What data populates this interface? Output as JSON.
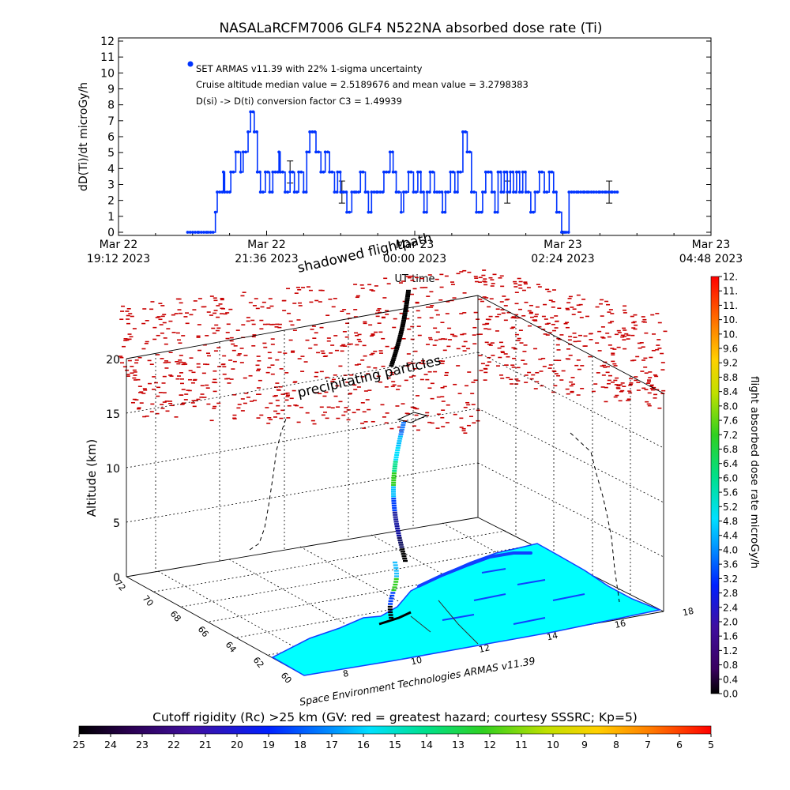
{
  "title": "NASALaRCFM7006   GLF4  N522NA absorbed dose rate (Ti)",
  "chart_data": [
    {
      "type": "line",
      "ylabel": "dD(Ti)/dt microGy/h",
      "ylim": [
        0,
        12
      ],
      "yticks": [
        0,
        1,
        2,
        3,
        4,
        5,
        6,
        7,
        8,
        9,
        10,
        11,
        12
      ],
      "xlabel": "UT time",
      "xlim_hours": [
        0,
        9.6
      ],
      "xticks": [
        {
          "l1": "Mar 22",
          "l2": "19:12 2023",
          "h": 0
        },
        {
          "l1": "Mar 22",
          "l2": "21:36 2023",
          "h": 2.4
        },
        {
          "l1": "Mar 23",
          "l2": "00:00 2023",
          "h": 4.8
        },
        {
          "l1": "Mar 23",
          "l2": "02:24 2023",
          "h": 7.2
        },
        {
          "l1": "Mar 23",
          "l2": "04:48 2023",
          "h": 9.6
        }
      ],
      "legend": [
        "SET ARMAS v11.39 with 22% 1-sigma uncertainty",
        "Cruise altitude median value = 2.5189676 and mean value = 3.2798383",
        "D(si) -> D(ti) conversion factor C3 = 1.49939"
      ],
      "series": [
        {
          "color": "#0033ff",
          "x": [
            1.12,
            1.3,
            1.45,
            1.57,
            1.6,
            1.7,
            1.72,
            1.82,
            1.9,
            1.98,
            2.02,
            2.1,
            2.14,
            2.2,
            2.25,
            2.3,
            2.38,
            2.45,
            2.5,
            2.6,
            2.62,
            2.7,
            2.78,
            2.85,
            2.92,
            3.0,
            3.05,
            3.1,
            3.2,
            3.28,
            3.35,
            3.42,
            3.5,
            3.55,
            3.6,
            3.65,
            3.7,
            3.78,
            3.85,
            3.92,
            4.0,
            4.05,
            4.1,
            4.2,
            4.3,
            4.4,
            4.45,
            4.5,
            4.58,
            4.62,
            4.7,
            4.78,
            4.85,
            4.9,
            4.95,
            5.0,
            5.05,
            5.12,
            5.2,
            5.25,
            5.3,
            5.38,
            5.45,
            5.5,
            5.58,
            5.65,
            5.72,
            5.8,
            5.9,
            5.95,
            6.05,
            6.1,
            6.15,
            6.2,
            6.25,
            6.3,
            6.35,
            6.4,
            6.45,
            6.5,
            6.55,
            6.6,
            6.68,
            6.75,
            6.82,
            6.9,
            6.98,
            7.05,
            7.1,
            7.18,
            7.25,
            7.3,
            7.38,
            7.45,
            7.55,
            7.62,
            7.7,
            7.8,
            7.9,
            8.0
          ],
          "y": [
            0,
            0,
            0,
            1.26,
            2.52,
            3.78,
            2.52,
            3.78,
            5.04,
            3.78,
            5.04,
            6.3,
            7.56,
            6.3,
            3.78,
            2.52,
            3.78,
            2.52,
            3.78,
            5.04,
            3.78,
            2.52,
            3.78,
            2.52,
            3.78,
            2.52,
            5.04,
            6.3,
            5.04,
            3.78,
            5.04,
            3.78,
            2.52,
            3.78,
            2.52,
            2.52,
            1.26,
            2.52,
            2.52,
            3.78,
            2.52,
            1.26,
            2.52,
            2.52,
            3.78,
            5.04,
            3.78,
            2.52,
            1.26,
            2.52,
            3.78,
            2.52,
            3.78,
            2.52,
            1.26,
            2.52,
            3.78,
            2.52,
            2.52,
            1.26,
            2.52,
            3.78,
            2.52,
            3.78,
            6.3,
            5.04,
            2.52,
            1.26,
            2.52,
            3.78,
            2.52,
            1.26,
            3.78,
            2.52,
            3.78,
            2.52,
            3.78,
            2.52,
            3.78,
            2.52,
            3.78,
            2.52,
            1.26,
            2.52,
            3.78,
            2.52,
            3.78,
            2.52,
            1.26,
            0,
            0,
            2.52,
            2.52,
            2.52,
            2.52,
            2.52,
            2.52,
            2.52,
            2.52,
            2.52
          ]
        }
      ],
      "errorbars_hours": [
        2.78,
        3.62,
        6.3,
        7.95
      ],
      "shadowed_label": "shadowed flightpath"
    },
    {
      "type": "scatter",
      "ylabel": "Altitude (km)",
      "zticks": [
        0,
        5,
        10,
        15,
        20
      ],
      "lat_ticks": [
        "72",
        "70",
        "68",
        "66",
        "64",
        "62",
        "60"
      ],
      "lon_ticks": [
        "8",
        "10",
        "12",
        "14",
        "16",
        "18"
      ],
      "annotation": "precipitating particles",
      "credit": "Space Environment Technologies ARMAS v11.39",
      "colorbar_label": "flight absorbed dose rate microGy/h",
      "colorbar_ticks": [
        "12.",
        "11.",
        "11.",
        "10.",
        "10.",
        "9.6",
        "9.2",
        "8.8",
        "8.4",
        "8.0",
        "7.6",
        "7.2",
        "6.8",
        "6.4",
        "6.0",
        "5.6",
        "5.2",
        "4.8",
        "4.4",
        "4.0",
        "3.6",
        "3.2",
        "2.8",
        "2.4",
        "2.0",
        "1.6",
        "1.2",
        "0.8",
        "0.4",
        "0.0"
      ],
      "rigidity_label": "Cutoff rigidity (Rc) >25 km (GV: red = greatest hazard; courtesy SSSRC; Kp=5)",
      "rigidity_ticks": [
        "25",
        "24",
        "23",
        "22",
        "21",
        "20",
        "19",
        "18",
        "17",
        "16",
        "15",
        "14",
        "13",
        "12",
        "11",
        "10",
        "9",
        "8",
        "7",
        "6",
        "5"
      ]
    }
  ]
}
